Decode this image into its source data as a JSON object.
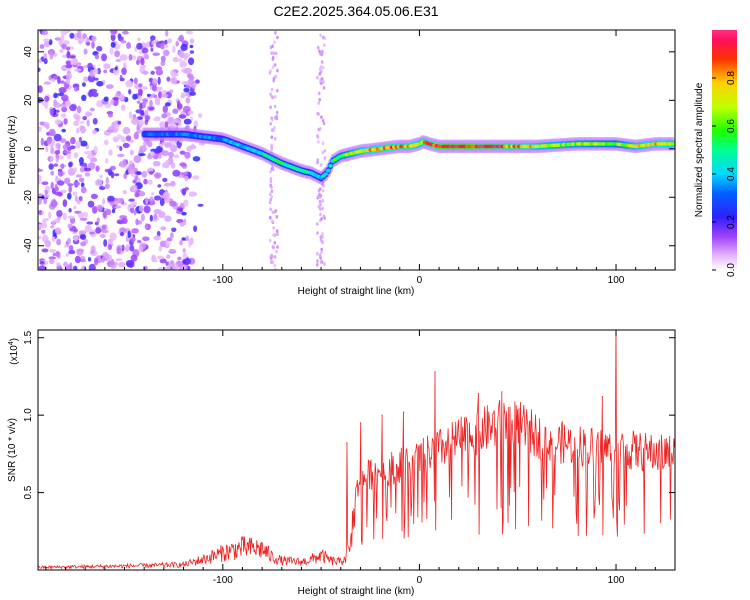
{
  "title": "C2E2.2025.364.05.06.E31",
  "chart_data": [
    {
      "type": "heatmap",
      "title": "C2E2.2025.364.05.06.E31",
      "xlabel": "Height of straight line (km)",
      "ylabel": "Frequency (Hz)",
      "xlim": [
        -194,
        130
      ],
      "ylim": [
        -50,
        49
      ],
      "xticks": [
        -100,
        0,
        100
      ],
      "yticks": [
        -40,
        -20,
        0,
        20,
        40
      ],
      "colorbar": {
        "label": "Normalized spectral amplitude",
        "range": [
          0,
          1
        ],
        "ticks": [
          0.0,
          0.2,
          0.4,
          0.6,
          0.8
        ],
        "tick_labels": [
          "0.0",
          "0.2",
          "0.4",
          "0.6",
          "0.8"
        ]
      },
      "ridge": {
        "x": [
          -140,
          -120,
          -100,
          -90,
          -80,
          -70,
          -60,
          -55,
          -50,
          -47,
          -44,
          -40,
          -30,
          -20,
          -10,
          -5,
          0,
          2,
          5,
          10,
          20,
          40,
          60,
          80,
          100,
          110,
          120,
          130
        ],
        "y": [
          6,
          6,
          4,
          1,
          -2,
          -6,
          -9,
          -10,
          -12,
          -10,
          -5,
          -3,
          -1,
          0,
          1,
          1,
          2,
          3,
          2,
          1,
          1,
          1,
          1,
          2,
          2,
          1,
          2,
          2
        ],
        "amplitude": [
          0.3,
          0.32,
          0.35,
          0.4,
          0.45,
          0.5,
          0.5,
          0.45,
          0.4,
          0.45,
          0.55,
          0.6,
          0.7,
          0.8,
          0.85,
          0.8,
          0.7,
          0.75,
          0.85,
          0.95,
          0.98,
          0.92,
          0.7,
          0.65,
          0.6,
          0.7,
          0.75,
          0.7
        ]
      },
      "noise_region_km": [
        -194,
        -115
      ]
    },
    {
      "type": "line",
      "xlabel": "Height of straight line (km)",
      "ylabel": "SNR (10 * v/v)",
      "scale_label": "(x10",
      "scale_exponent": "4",
      "scale_suffix": ")",
      "xlim": [
        -194,
        130
      ],
      "ylim": [
        0,
        1.55
      ],
      "xticks": [
        -100,
        0,
        100
      ],
      "yticks": [
        0.5,
        1.0,
        1.5
      ],
      "ytick_labels": [
        "0.5",
        "1.0",
        "1.5"
      ],
      "series": [
        {
          "name": "SNR",
          "color": "#ee2222",
          "envelope_x": [
            -194,
            -150,
            -120,
            -110,
            -100,
            -90,
            -80,
            -75,
            -70,
            -60,
            -55,
            -50,
            -45,
            -40,
            -35,
            -33,
            -30,
            -25,
            -20,
            -15,
            -10,
            -5,
            0,
            5,
            10,
            15,
            20,
            30,
            40,
            45,
            50,
            55,
            60,
            70,
            80,
            90,
            100,
            110,
            120,
            130
          ],
          "envelope_y": [
            0.02,
            0.03,
            0.04,
            0.08,
            0.13,
            0.17,
            0.16,
            0.1,
            0.07,
            0.06,
            0.08,
            0.11,
            0.07,
            0.06,
            0.15,
            0.5,
            0.6,
            0.66,
            0.68,
            0.7,
            0.72,
            0.74,
            0.76,
            0.8,
            0.83,
            0.86,
            0.9,
            0.95,
            1.0,
            1.03,
            1.0,
            0.96,
            0.92,
            0.88,
            0.86,
            0.84,
            0.83,
            0.82,
            0.8,
            0.8
          ],
          "spikes": [
            {
              "x": -37,
              "y": 0.82
            },
            {
              "x": -30,
              "y": 0.95
            },
            {
              "x": -19,
              "y": 1.0
            },
            {
              "x": -8,
              "y": 1.02
            },
            {
              "x": 8,
              "y": 1.28
            },
            {
              "x": 30,
              "y": 1.14
            },
            {
              "x": 42,
              "y": 1.15
            },
            {
              "x": 93,
              "y": 1.12
            },
            {
              "x": 100,
              "y": 1.6
            }
          ]
        }
      ]
    }
  ]
}
